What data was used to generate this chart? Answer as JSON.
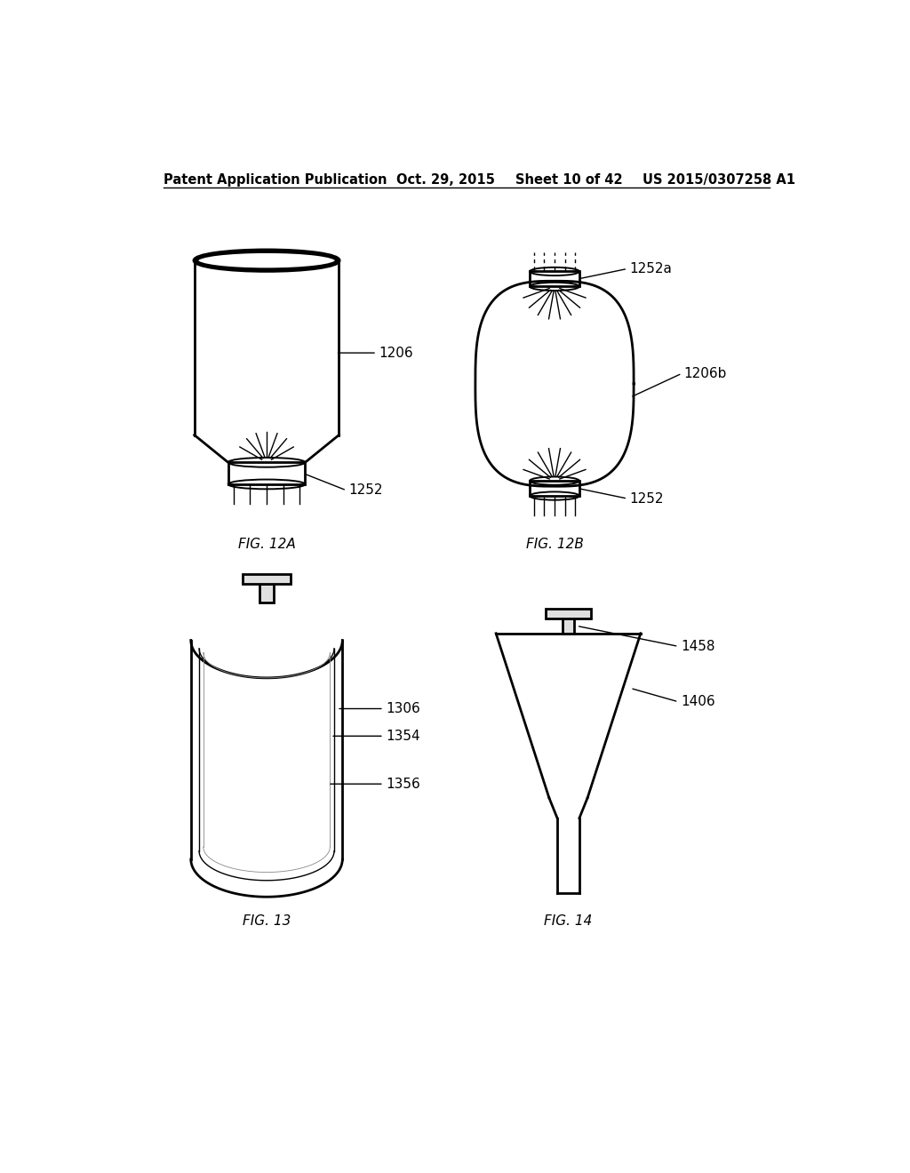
{
  "bg_color": "#ffffff",
  "header_text": "Patent Application Publication",
  "header_date": "Oct. 29, 2015",
  "header_sheet": "Sheet 10 of 42",
  "header_patent": "US 2015/0307258 A1",
  "line_color": "#000000",
  "text_color": "#000000",
  "font_size_header": 10.5,
  "font_size_label": 11,
  "font_size_annotation": 11
}
